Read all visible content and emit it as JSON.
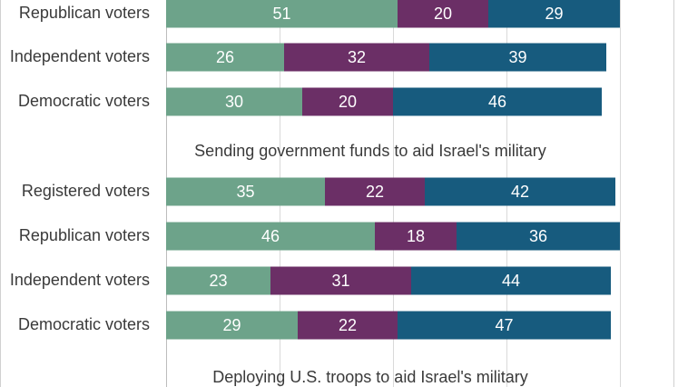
{
  "chart_data": {
    "type": "bar",
    "orientation": "horizontal",
    "stacked": true,
    "xlim": [
      0,
      100
    ],
    "grid": true,
    "colors": [
      "#6da38a",
      "#6b2f66",
      "#175b7e"
    ],
    "groups": [
      {
        "title": "",
        "rows": [
          {
            "label": "Republican voters",
            "values": [
              51,
              20,
              29
            ]
          },
          {
            "label": "Independent voters",
            "values": [
              26,
              32,
              39
            ]
          },
          {
            "label": "Democratic voters",
            "values": [
              30,
              20,
              46
            ]
          }
        ]
      },
      {
        "title": "Sending government funds to aid Israel's military",
        "rows": [
          {
            "label": "Registered voters",
            "values": [
              35,
              22,
              42
            ]
          },
          {
            "label": "Republican voters",
            "values": [
              46,
              18,
              36
            ]
          },
          {
            "label": "Independent voters",
            "values": [
              23,
              31,
              44
            ]
          },
          {
            "label": "Democratic voters",
            "values": [
              29,
              22,
              47
            ]
          }
        ]
      },
      {
        "title": "Deploying U.S. troops to aid Israel's military",
        "rows": []
      }
    ]
  }
}
